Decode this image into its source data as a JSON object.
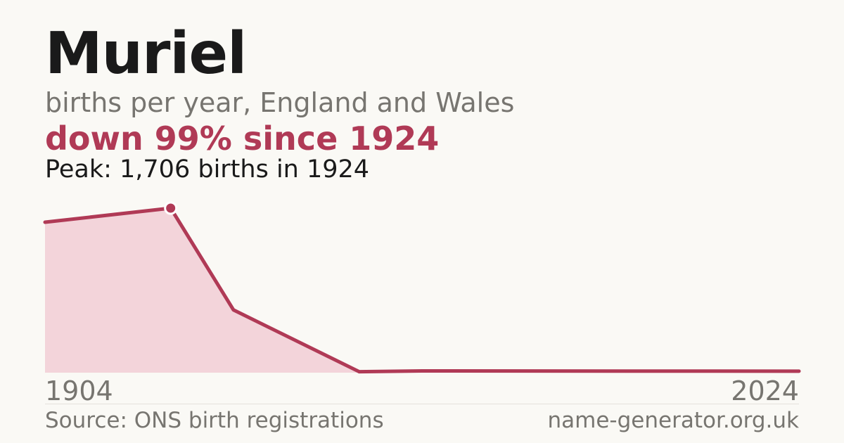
{
  "header": {
    "title": "Muriel",
    "subtitle": "births per year, England and Wales",
    "headline": "down 99% since 1924",
    "peak_text": "Peak: 1,706 births in 1924"
  },
  "footer": {
    "source": "Source: ONS birth registrations",
    "site": "name-generator.org.uk"
  },
  "colors": {
    "line": "#b03a56",
    "fill": "#f3d4da",
    "background": "#faf9f5"
  },
  "chart_data": {
    "type": "area",
    "x": [
      1904,
      1924,
      1934,
      1954,
      1964,
      2024
    ],
    "values": [
      1560,
      1706,
      650,
      10,
      18,
      15
    ],
    "xlim": [
      1904,
      2024
    ],
    "ylim": [
      0,
      1706
    ],
    "x_tick_labels": [
      "1904",
      "2024"
    ],
    "peak": {
      "x": 1924,
      "y": 1706
    },
    "grid": false,
    "legend": "none"
  }
}
